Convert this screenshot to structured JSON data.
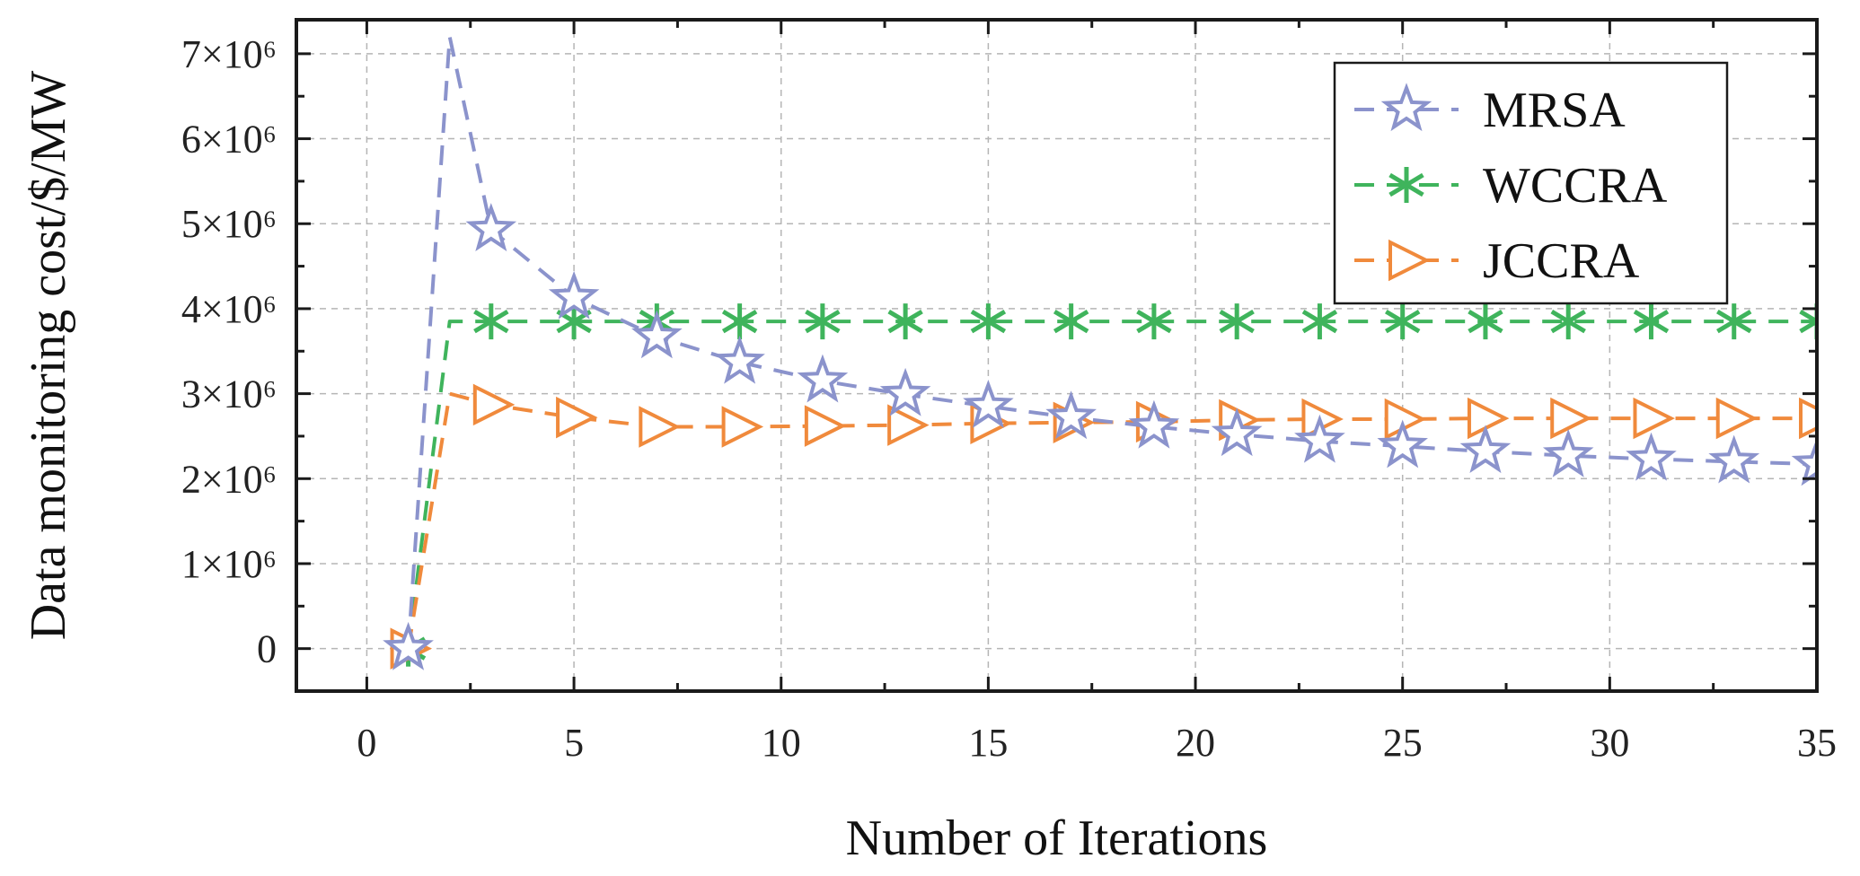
{
  "chart_data": {
    "type": "line",
    "title": "",
    "xlabel": "Number of Iterations",
    "ylabel": "Data monitoring cost/$/MW",
    "xlim": [
      -1.7,
      35
    ],
    "ylim": [
      -500000,
      7400000
    ],
    "xticks": [
      0,
      5,
      10,
      15,
      20,
      25,
      30,
      35
    ],
    "yticks": [
      0,
      1000000,
      2000000,
      3000000,
      4000000,
      5000000,
      6000000,
      7000000
    ],
    "ytick_labels": [
      "0",
      "1×10⁶",
      "2×10⁶",
      "3×10⁶",
      "4×10⁶",
      "5×10⁶",
      "6×10⁶",
      "7×10⁶"
    ],
    "grid": true,
    "legend_position": "top-right",
    "series": [
      {
        "name": "MRSA",
        "color": "#8b93cc",
        "marker": "star",
        "x": [
          1,
          2,
          3,
          5,
          7,
          9,
          11,
          13,
          15,
          17,
          19,
          21,
          23,
          25,
          27,
          29,
          31,
          33,
          35
        ],
        "y": [
          0,
          7200000,
          4930000,
          4130000,
          3670000,
          3370000,
          3150000,
          2990000,
          2850000,
          2720000,
          2610000,
          2520000,
          2440000,
          2380000,
          2320000,
          2270000,
          2230000,
          2200000,
          2170000
        ],
        "marker_x": [
          1,
          3,
          5,
          7,
          9,
          11,
          13,
          15,
          17,
          19,
          21,
          23,
          25,
          27,
          29,
          31,
          33,
          35
        ]
      },
      {
        "name": "WCCRA",
        "color": "#3fb45c",
        "marker": "asterisk",
        "x": [
          1,
          2,
          3,
          5,
          7,
          9,
          11,
          13,
          15,
          17,
          19,
          21,
          23,
          25,
          27,
          29,
          31,
          33,
          35
        ],
        "y": [
          0,
          3850000,
          3850000,
          3850000,
          3850000,
          3850000,
          3850000,
          3850000,
          3850000,
          3850000,
          3850000,
          3850000,
          3850000,
          3850000,
          3850000,
          3850000,
          3850000,
          3850000,
          3850000
        ],
        "marker_x": [
          1,
          3,
          5,
          7,
          9,
          11,
          13,
          15,
          17,
          19,
          21,
          23,
          25,
          27,
          29,
          31,
          33,
          35
        ]
      },
      {
        "name": "JCCRA",
        "color": "#f08a3c",
        "marker": "triangle-right",
        "x": [
          1,
          2,
          3,
          5,
          7,
          9,
          11,
          13,
          15,
          17,
          19,
          21,
          23,
          25,
          27,
          29,
          31,
          33,
          35
        ],
        "y": [
          0,
          3000000,
          2870000,
          2720000,
          2610000,
          2610000,
          2620000,
          2630000,
          2650000,
          2660000,
          2670000,
          2690000,
          2700000,
          2700000,
          2710000,
          2710000,
          2710000,
          2710000,
          2710000
        ],
        "marker_x": [
          1,
          3,
          5,
          7,
          9,
          11,
          13,
          15,
          17,
          19,
          21,
          23,
          25,
          27,
          29,
          31,
          33,
          35
        ]
      }
    ]
  }
}
